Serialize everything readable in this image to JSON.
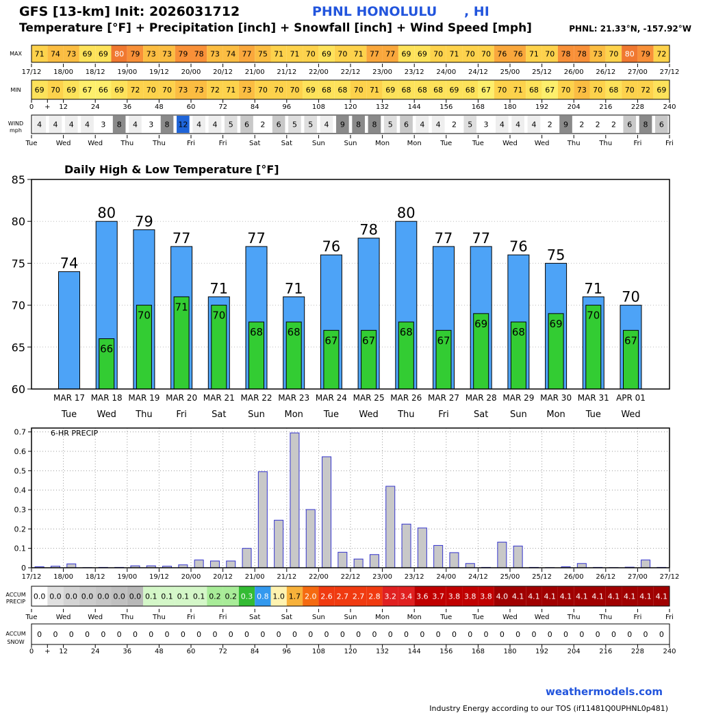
{
  "header": {
    "title": "GFS [13-km] Init: 2026031712",
    "station": "PHNL HONOLULU      , HI",
    "subtitle": "Temperature [°F] + Precipitation [inch] + Snowfall [inch] + Wind Speed [mph]",
    "coords": "PHNL: 21.33°N, -157.92°W"
  },
  "footer": {
    "brand": "weathermodels.com",
    "license": "Industry Energy according to our TOS (if11481Q0UPHNL0p481)"
  },
  "row_labels": {
    "max": "MAX",
    "min": "MIN",
    "wind1": "WIND",
    "wind2": "mph",
    "accum1": "ACCUM",
    "accum2": "PRECIP",
    "snow1": "ACCUM",
    "snow2": "SNOW"
  },
  "colors": {
    "high_bar": "#4da3f7",
    "low_bar": "#33cc33",
    "precip_bar": "#c8c8c8",
    "precip_edge": "#3333cc"
  },
  "time_labels": [
    "17/12",
    "18/00",
    "18/12",
    "19/00",
    "19/12",
    "20/00",
    "20/12",
    "21/00",
    "21/12",
    "22/00",
    "22/12",
    "23/00",
    "23/12",
    "24/00",
    "24/12",
    "25/00",
    "25/12",
    "26/00",
    "26/12",
    "27/00",
    "27/12"
  ],
  "hour_labels": [
    "0",
    "+",
    "12",
    "24",
    "36",
    "48",
    "60",
    "72",
    "84",
    "96",
    "108",
    "120",
    "132",
    "144",
    "156",
    "168",
    "180",
    "192",
    "204",
    "216",
    "228",
    "240"
  ],
  "day_labels": [
    "Tue",
    "Wed",
    "Wed",
    "Thu",
    "Thu",
    "Fri",
    "Fri",
    "Sat",
    "Sat",
    "Sun",
    "Sun",
    "Mon",
    "Mon",
    "Tue",
    "Tue",
    "Wed",
    "Wed",
    "Thu",
    "Thu",
    "Fri",
    "Fri"
  ],
  "max_temps": [
    "71",
    "74",
    "73",
    "69",
    "69",
    "80",
    "79",
    "73",
    "73",
    "79",
    "78",
    "73",
    "74",
    "77",
    "75",
    "71",
    "71",
    "70",
    "69",
    "70",
    "71",
    "77",
    "77",
    "69",
    "69",
    "70",
    "71",
    "70",
    "70",
    "76",
    "76",
    "71",
    "70",
    "78",
    "78",
    "73",
    "70",
    "80",
    "79",
    "72"
  ],
  "min_temps": [
    "69",
    "70",
    "69",
    "67",
    "66",
    "69",
    "72",
    "70",
    "70",
    "73",
    "73",
    "72",
    "71",
    "73",
    "70",
    "70",
    "70",
    "69",
    "68",
    "68",
    "70",
    "71",
    "69",
    "68",
    "68",
    "68",
    "69",
    "68",
    "67",
    "70",
    "71",
    "68",
    "67",
    "70",
    "73",
    "70",
    "68",
    "70",
    "72",
    "69"
  ],
  "wind": [
    "4",
    "4",
    "4",
    "4",
    "3",
    "8",
    "4",
    "3",
    "8",
    "12",
    "4",
    "4",
    "5",
    "6",
    "2",
    "6",
    "5",
    "5",
    "4",
    "9",
    "8",
    "8",
    "5",
    "6",
    "4",
    "4",
    "2",
    "5",
    "3",
    "4",
    "4",
    "4",
    "2",
    "9",
    "2",
    "2",
    "2",
    "6",
    "8",
    "6"
  ],
  "accum_precip": [
    "0.0",
    "0.0",
    "0.0",
    "0.0",
    "0.0",
    "0.0",
    "0.0",
    "0.1",
    "0.1",
    "0.1",
    "0.1",
    "0.2",
    "0.2",
    "0.3",
    "0.8",
    "1.0",
    "1.7",
    "2.0",
    "2.6",
    "2.7",
    "2.7",
    "2.8",
    "3.2",
    "3.4",
    "3.6",
    "3.7",
    "3.8",
    "3.8",
    "3.8",
    "4.0",
    "4.1",
    "4.1",
    "4.1",
    "4.1",
    "4.1",
    "4.1",
    "4.1",
    "4.1",
    "4.1",
    "4.1"
  ],
  "accum_snow": [
    "0",
    "0",
    "0",
    "0",
    "0",
    "0",
    "0",
    "0",
    "0",
    "0",
    "0",
    "0",
    "0",
    "0",
    "0",
    "0",
    "0",
    "0",
    "0",
    "0",
    "0",
    "0",
    "0",
    "0",
    "0",
    "0",
    "0",
    "0",
    "0",
    "0",
    "0",
    "0",
    "0",
    "0",
    "0",
    "0",
    "0",
    "0",
    "0",
    "0"
  ],
  "chart_data": [
    {
      "type": "bar",
      "title": "Daily High & Low Temperature [°F]",
      "ylim": [
        60,
        85
      ],
      "yticks": [
        "60",
        "65",
        "70",
        "75",
        "80",
        "85"
      ],
      "categories": [
        "MAR 17",
        "MAR 18",
        "MAR 19",
        "MAR 20",
        "MAR 21",
        "MAR 22",
        "MAR 23",
        "MAR 24",
        "MAR 25",
        "MAR 26",
        "MAR 27",
        "MAR 28",
        "MAR 29",
        "MAR 30",
        "MAR 31",
        "APR 01"
      ],
      "weekdays": [
        "Tue",
        "Wed",
        "Thu",
        "Fri",
        "Sat",
        "Sun",
        "Mon",
        "Tue",
        "Wed",
        "Thu",
        "Fri",
        "Sat",
        "Sun",
        "Mon",
        "Tue",
        "Wed"
      ],
      "series": [
        {
          "values": [
            74,
            80,
            79,
            77,
            71,
            77,
            71,
            76,
            78,
            80,
            77,
            77,
            76,
            75,
            71,
            70
          ]
        },
        {
          "values": [
            null,
            66,
            70,
            71,
            70,
            68,
            68,
            67,
            67,
            68,
            67,
            69,
            68,
            69,
            70,
            67
          ]
        }
      ],
      "high_labels": [
        "74",
        "80",
        "79",
        "77",
        "71",
        "77",
        "71",
        "76",
        "78",
        "80",
        "77",
        "77",
        "76",
        "75",
        "71",
        "70"
      ],
      "low_labels": [
        "",
        "66",
        "70",
        "71",
        "70",
        "68",
        "68",
        "67",
        "67",
        "68",
        "67",
        "69",
        "68",
        "69",
        "70",
        "67"
      ],
      "grid": true
    },
    {
      "type": "bar",
      "title": "6-HR PRECIP",
      "ylim": [
        0,
        0.72
      ],
      "yticks": [
        "0",
        "0.1",
        "0.2",
        "0.3",
        "0.4",
        "0.5",
        "0.6",
        "0.7"
      ],
      "x_hours": [
        6,
        12,
        18,
        24,
        30,
        36,
        42,
        48,
        54,
        60,
        66,
        72,
        78,
        84,
        90,
        96,
        102,
        108,
        114,
        120,
        126,
        132,
        138,
        144,
        150,
        156,
        162,
        168,
        174,
        180,
        186,
        192,
        198,
        204,
        210,
        216,
        222,
        228,
        234,
        240
      ],
      "values": [
        0.005,
        0.008,
        0.02,
        0.001,
        0.002,
        0.002,
        0.01,
        0.01,
        0.008,
        0.015,
        0.04,
        0.035,
        0.035,
        0.1,
        0.495,
        0.245,
        0.695,
        0.3,
        0.572,
        0.08,
        0.045,
        0.068,
        0.42,
        0.225,
        0.205,
        0.115,
        0.078,
        0.022,
        0.002,
        0.132,
        0.112,
        0.002,
        0.001,
        0.005,
        0.022,
        0.002,
        0.001,
        0.003,
        0.04,
        0.002
      ],
      "grid": true
    }
  ]
}
